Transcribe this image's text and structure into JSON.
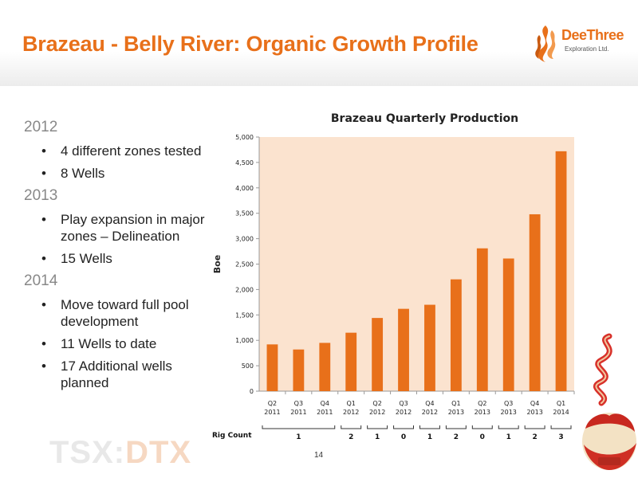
{
  "slide": {
    "title": "Brazeau - Belly River: Organic Growth Profile",
    "page_number": "14",
    "footer_brand_prefix": "TSX:",
    "footer_brand_suffix": "DTX"
  },
  "logo": {
    "name": "DeeThree",
    "sub": "Exploration Ltd."
  },
  "bullets": [
    {
      "year": "2012",
      "items": [
        "4 different zones tested",
        "8 Wells"
      ]
    },
    {
      "year": "2013",
      "items": [
        "Play expansion in major zones – Delineation",
        "15 Wells"
      ]
    },
    {
      "year": "2014",
      "items": [
        "Move toward full pool development",
        "11 Wells to date",
        "17 Additional wells planned"
      ]
    }
  ],
  "chart_data": {
    "type": "bar",
    "title": "Brazeau Quarterly Production",
    "xlabel": "",
    "ylabel": "Boe",
    "ylim": [
      0,
      5000
    ],
    "yticks": [
      0,
      500,
      1000,
      1500,
      2000,
      2500,
      3000,
      3500,
      4000,
      4500,
      5000
    ],
    "ytick_labels": [
      "0",
      "500",
      "1,000",
      "1,500",
      "2,000",
      "2,500",
      "3,000",
      "3,500",
      "4,000",
      "4,500",
      "5,000"
    ],
    "categories": [
      "Q2 2011",
      "Q3 2011",
      "Q4 2011",
      "Q1 2012",
      "Q2 2012",
      "Q3 2012",
      "Q4 2012",
      "Q1 2013",
      "Q2 2013",
      "Q3 2013",
      "Q4 2013",
      "Q1 2014"
    ],
    "category_lines": [
      [
        "Q2",
        "2011"
      ],
      [
        "Q3",
        "2011"
      ],
      [
        "Q4",
        "2011"
      ],
      [
        "Q1",
        "2012"
      ],
      [
        "Q2",
        "2012"
      ],
      [
        "Q3",
        "2012"
      ],
      [
        "Q4",
        "2012"
      ],
      [
        "Q1",
        "2013"
      ],
      [
        "Q2",
        "2013"
      ],
      [
        "Q3",
        "2013"
      ],
      [
        "Q4",
        "2013"
      ],
      [
        "Q1",
        "2014"
      ]
    ],
    "values": [
      920,
      820,
      950,
      1150,
      1440,
      1620,
      1700,
      2200,
      2810,
      2610,
      3480,
      4720
    ],
    "grid": false,
    "bar_color": "#e8701a",
    "plot_background": "#fbe3cf",
    "rig_count": {
      "label": "Rig Count",
      "groups": [
        {
          "from": 0,
          "to": 2,
          "count": "1"
        },
        {
          "from": 3,
          "to": 3,
          "count": "2"
        },
        {
          "from": 4,
          "to": 4,
          "count": "1"
        },
        {
          "from": 5,
          "to": 5,
          "count": "0"
        },
        {
          "from": 6,
          "to": 6,
          "count": "1"
        },
        {
          "from": 7,
          "to": 7,
          "count": "2"
        },
        {
          "from": 8,
          "to": 8,
          "count": "0"
        },
        {
          "from": 9,
          "to": 9,
          "count": "1"
        },
        {
          "from": 10,
          "to": 10,
          "count": "2"
        },
        {
          "from": 11,
          "to": 11,
          "count": "3"
        }
      ]
    }
  },
  "colors": {
    "accent": "#e8701a",
    "text": "#222222",
    "year_text": "#888888"
  }
}
